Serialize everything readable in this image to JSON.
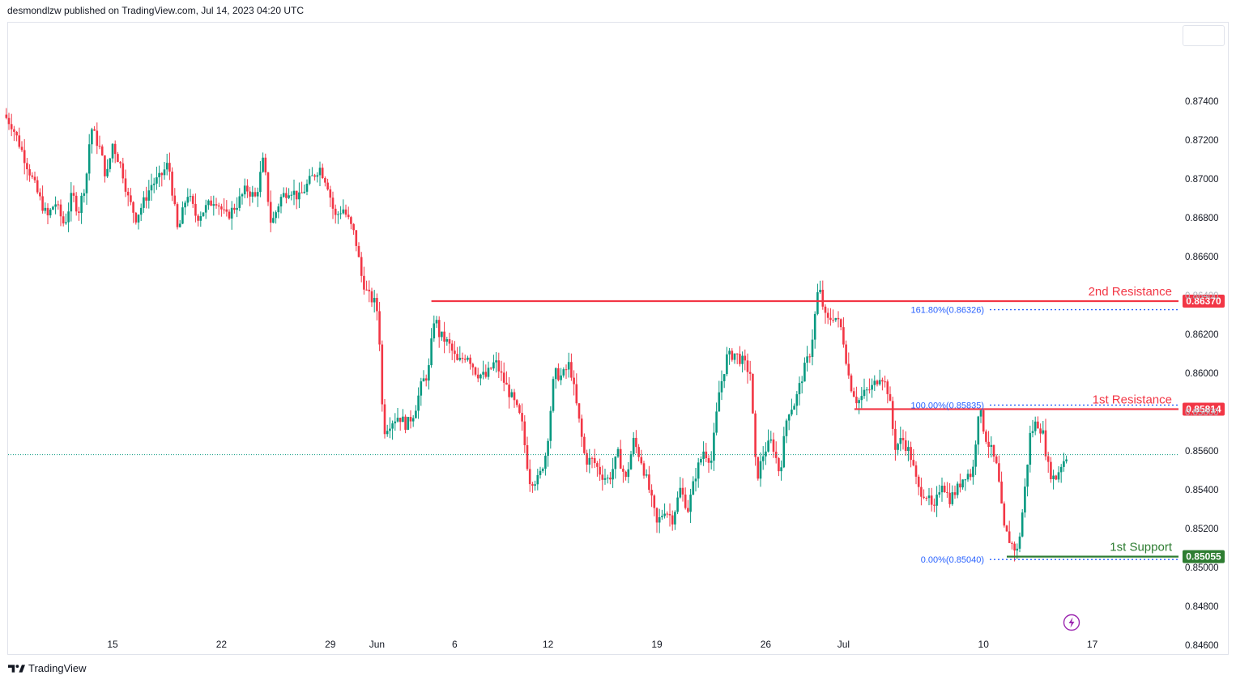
{
  "header": {
    "text": "desmondlzw published on TradingView.com, Jul 14, 2023 04:20 UTC"
  },
  "footer": {
    "brand": "TradingView"
  },
  "icons": {
    "logo": "tradingview-logo-icon",
    "replay": "lightning-icon"
  },
  "colors": {
    "up": "#089981",
    "down": "#f23645",
    "resistance": "#f23645",
    "support": "#2e7d32",
    "fib": "#2962ff",
    "last_price_line": "#089981",
    "axis_text": "#131722"
  },
  "chart_data": {
    "type": "candlestick",
    "instrument_interval": "4h",
    "ylim": [
      0.8452,
      0.8758
    ],
    "y_ticks": [
      "0.87400",
      "0.87200",
      "0.87000",
      "0.86800",
      "0.86600",
      "0.86400",
      "0.86200",
      "0.86000",
      "0.85800",
      "0.85600",
      "0.85400",
      "0.85200",
      "0.85000",
      "0.84800",
      "0.84600"
    ],
    "x_ticks": [
      {
        "label": "15",
        "day": 15
      },
      {
        "label": "22",
        "day": 22
      },
      {
        "label": "29",
        "day": 29
      },
      {
        "label": "Jun",
        "day": 32
      },
      {
        "label": "6",
        "day": 37
      },
      {
        "label": "12",
        "day": 43
      },
      {
        "label": "19",
        "day": 50
      },
      {
        "label": "26",
        "day": 57
      },
      {
        "label": "Jul",
        "day": 62
      },
      {
        "label": "10",
        "day": 71
      },
      {
        "label": "17",
        "day": 78
      }
    ],
    "x_unit": "days since May 1, 2023 (May 15 = 15, Jun 1 = 32, Jul 1 = 62)",
    "last_price": 0.8558,
    "levels": [
      {
        "name": "2nd Resistance",
        "value": 0.8637,
        "label": "0.86370",
        "kind": "resistance",
        "from_day": 35.5
      },
      {
        "name": "1st Resistance",
        "value": 0.85814,
        "label": "0.85814",
        "kind": "resistance",
        "from_day": 62.7
      },
      {
        "name": "1st Support",
        "value": 0.85055,
        "label": "0.85055",
        "kind": "support",
        "from_day": 72.5
      }
    ],
    "fibonacci": [
      {
        "label": "161.80%(0.86326)",
        "value": 0.86326
      },
      {
        "label": "100.00%(0.85835)",
        "value": 0.85835
      },
      {
        "label": "0.00%(0.85040)",
        "value": 0.8504
      }
    ],
    "price_anchors": [
      [
        8.0,
        0.8733
      ],
      [
        8.5,
        0.8728
      ],
      [
        9.0,
        0.8718
      ],
      [
        9.6,
        0.8705
      ],
      [
        10.2,
        0.8692
      ],
      [
        10.8,
        0.868
      ],
      [
        11.3,
        0.8688
      ],
      [
        11.9,
        0.8676
      ],
      [
        12.4,
        0.8692
      ],
      [
        12.8,
        0.8683
      ],
      [
        13.3,
        0.87
      ],
      [
        13.6,
        0.8727
      ],
      [
        14.2,
        0.8715
      ],
      [
        14.6,
        0.87
      ],
      [
        15.0,
        0.8718
      ],
      [
        15.6,
        0.8705
      ],
      [
        16.0,
        0.869
      ],
      [
        16.5,
        0.868
      ],
      [
        17.0,
        0.8688
      ],
      [
        17.5,
        0.8697
      ],
      [
        18.0,
        0.87
      ],
      [
        18.6,
        0.8708
      ],
      [
        19.2,
        0.8672
      ],
      [
        19.8,
        0.8693
      ],
      [
        20.4,
        0.868
      ],
      [
        21.0,
        0.8685
      ],
      [
        21.6,
        0.869
      ],
      [
        22.3,
        0.868
      ],
      [
        23.0,
        0.8687
      ],
      [
        23.6,
        0.8695
      ],
      [
        24.2,
        0.869
      ],
      [
        24.7,
        0.871
      ],
      [
        25.2,
        0.8676
      ],
      [
        25.8,
        0.869
      ],
      [
        26.4,
        0.8695
      ],
      [
        27.0,
        0.869
      ],
      [
        27.6,
        0.8698
      ],
      [
        28.3,
        0.8706
      ],
      [
        28.8,
        0.8698
      ],
      [
        29.3,
        0.868
      ],
      [
        29.8,
        0.8685
      ],
      [
        30.2,
        0.8678
      ],
      [
        30.6,
        0.867
      ],
      [
        31.0,
        0.865
      ],
      [
        31.4,
        0.864
      ],
      [
        31.8,
        0.8637
      ],
      [
        32.1,
        0.863
      ],
      [
        32.4,
        0.857
      ],
      [
        32.9,
        0.8575
      ],
      [
        33.4,
        0.8578
      ],
      [
        33.9,
        0.8573
      ],
      [
        34.4,
        0.858
      ],
      [
        34.9,
        0.8595
      ],
      [
        35.3,
        0.86
      ],
      [
        35.7,
        0.863
      ],
      [
        36.0,
        0.862
      ],
      [
        36.6,
        0.8615
      ],
      [
        37.2,
        0.8605
      ],
      [
        37.8,
        0.861
      ],
      [
        38.4,
        0.86
      ],
      [
        39.0,
        0.8598
      ],
      [
        39.6,
        0.8606
      ],
      [
        40.2,
        0.8595
      ],
      [
        40.8,
        0.8585
      ],
      [
        41.3,
        0.8575
      ],
      [
        41.8,
        0.8545
      ],
      [
        42.4,
        0.8545
      ],
      [
        42.9,
        0.856
      ],
      [
        43.4,
        0.86
      ],
      [
        43.9,
        0.8598
      ],
      [
        44.4,
        0.8605
      ],
      [
        44.9,
        0.858
      ],
      [
        45.4,
        0.8555
      ],
      [
        45.9,
        0.8555
      ],
      [
        46.4,
        0.8548
      ],
      [
        46.9,
        0.8545
      ],
      [
        47.5,
        0.8558
      ],
      [
        48.0,
        0.8545
      ],
      [
        48.5,
        0.8565
      ],
      [
        49.0,
        0.8555
      ],
      [
        49.5,
        0.854
      ],
      [
        50.0,
        0.8522
      ],
      [
        50.5,
        0.853
      ],
      [
        51.0,
        0.8525
      ],
      [
        51.5,
        0.854
      ],
      [
        52.0,
        0.853
      ],
      [
        52.5,
        0.8548
      ],
      [
        53.0,
        0.856
      ],
      [
        53.5,
        0.8555
      ],
      [
        54.0,
        0.859
      ],
      [
        54.5,
        0.8608
      ],
      [
        55.0,
        0.861
      ],
      [
        55.5,
        0.8606
      ],
      [
        56.0,
        0.86
      ],
      [
        56.4,
        0.8545
      ],
      [
        56.9,
        0.856
      ],
      [
        57.4,
        0.8565
      ],
      [
        57.9,
        0.8548
      ],
      [
        58.4,
        0.858
      ],
      [
        58.9,
        0.8585
      ],
      [
        59.4,
        0.86
      ],
      [
        59.9,
        0.8612
      ],
      [
        60.4,
        0.8645
      ],
      [
        60.9,
        0.8626
      ],
      [
        61.4,
        0.863
      ],
      [
        61.9,
        0.8622
      ],
      [
        62.4,
        0.8595
      ],
      [
        62.9,
        0.8585
      ],
      [
        63.4,
        0.859
      ],
      [
        63.9,
        0.8593
      ],
      [
        64.4,
        0.86
      ],
      [
        64.9,
        0.859
      ],
      [
        65.3,
        0.8562
      ],
      [
        65.8,
        0.8566
      ],
      [
        66.3,
        0.8558
      ],
      [
        66.8,
        0.854
      ],
      [
        67.3,
        0.8538
      ],
      [
        67.8,
        0.8528
      ],
      [
        68.3,
        0.8545
      ],
      [
        68.8,
        0.8535
      ],
      [
        69.3,
        0.854
      ],
      [
        69.8,
        0.8548
      ],
      [
        70.3,
        0.8548
      ],
      [
        70.7,
        0.8583
      ],
      [
        71.1,
        0.8568
      ],
      [
        71.5,
        0.856
      ],
      [
        71.9,
        0.855
      ],
      [
        72.3,
        0.852
      ],
      [
        72.8,
        0.8512
      ],
      [
        73.2,
        0.8508
      ],
      [
        73.6,
        0.8535
      ],
      [
        74.0,
        0.8568
      ],
      [
        74.4,
        0.8575
      ],
      [
        74.8,
        0.857
      ],
      [
        75.2,
        0.855
      ],
      [
        75.6,
        0.8545
      ],
      [
        76.0,
        0.8553
      ],
      [
        76.4,
        0.8558
      ]
    ]
  }
}
